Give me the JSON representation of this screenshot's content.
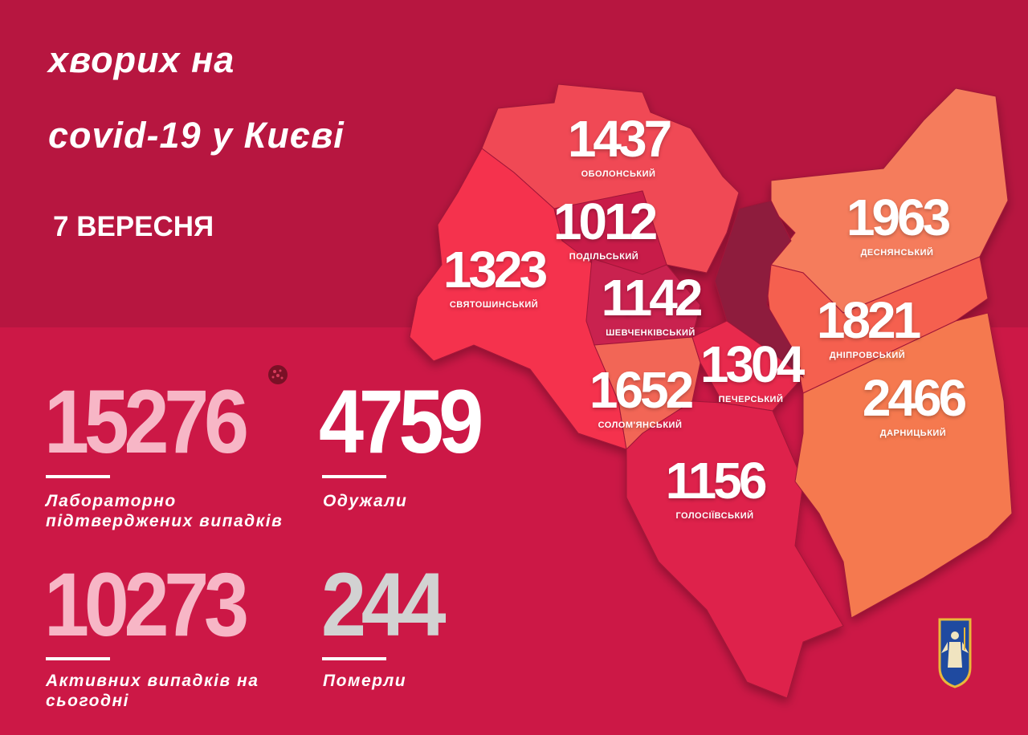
{
  "header": {
    "line1": "хворих на",
    "line2": "covid-19 у Києві",
    "date": "7 ВЕРЕСНЯ"
  },
  "stats": [
    {
      "value": "15276",
      "label": "Лабораторно підтверджених випадків",
      "color": "#f7b6c6"
    },
    {
      "value": "4759",
      "label": "Одужали",
      "color": "#ffffff"
    },
    {
      "value": "10273",
      "label": "Активних випадків на сьогодні",
      "color": "#f7b6c6"
    },
    {
      "value": "244",
      "label": "Померли",
      "color": "#d2d2d2"
    }
  ],
  "districts": [
    {
      "name": "ОБОЛОНСЬКИЙ",
      "value": "1437",
      "color": "#f04a55"
    },
    {
      "name": "ПОДІЛЬСЬКИЙ",
      "value": "1012",
      "color": "#c81c48"
    },
    {
      "name": "СВЯТОШИНСЬКИЙ",
      "value": "1323",
      "color": "#f5304e"
    },
    {
      "name": "ШЕВЧЕНКІВСЬКИЙ",
      "value": "1142",
      "color": "#c92050"
    },
    {
      "name": "СОЛОМ'ЯНСЬКИЙ",
      "value": "1652",
      "color": "#f26656"
    },
    {
      "name": "ПЕЧЕРСЬКИЙ",
      "value": "1304",
      "color": "#e82a4e"
    },
    {
      "name": "ГОЛОСІЇВСЬКИЙ",
      "value": "1156",
      "color": "#de224b"
    },
    {
      "name": "ДЕСНЯНСЬКИЙ",
      "value": "1963",
      "color": "#f57c5c"
    },
    {
      "name": "ДНІПРОВСЬКИЙ",
      "value": "1821",
      "color": "#f5604f"
    },
    {
      "name": "ДАРНИЦЬКИЙ",
      "value": "2466",
      "color": "#f5794f"
    }
  ],
  "icons": {
    "virus": "virus-icon",
    "emblem": "kyiv-coat-of-arms"
  }
}
